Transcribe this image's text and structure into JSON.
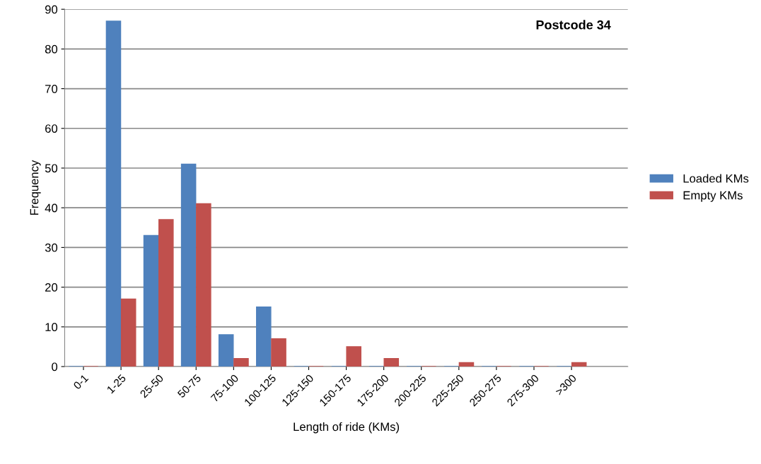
{
  "chart_data": {
    "type": "bar",
    "title": "Postcode 34",
    "xlabel": "Length of ride (KMs)",
    "ylabel": "Frequency",
    "categories": [
      "0-1",
      "1-25",
      "25-50",
      "50-75",
      "75-100",
      "100-125",
      "125-150",
      "150-175",
      "175-200",
      "200-225",
      "225-250",
      "250-275",
      "275-300",
      ">300"
    ],
    "series": [
      {
        "name": "Loaded KMs",
        "color": "#4f81bd",
        "values": [
          0,
          87,
          33,
          51,
          8,
          15,
          0,
          0,
          0,
          0,
          0,
          0,
          0,
          0
        ]
      },
      {
        "name": "Empty KMs",
        "color": "#c0504d",
        "values": [
          0,
          17,
          37,
          41,
          2,
          7,
          0,
          5,
          2,
          0,
          1,
          0,
          0,
          1
        ]
      }
    ],
    "ylim": [
      0,
      90
    ],
    "yticks": [
      0,
      10,
      20,
      30,
      40,
      50,
      60,
      70,
      80,
      90
    ],
    "grid": "y",
    "legend": "right"
  }
}
